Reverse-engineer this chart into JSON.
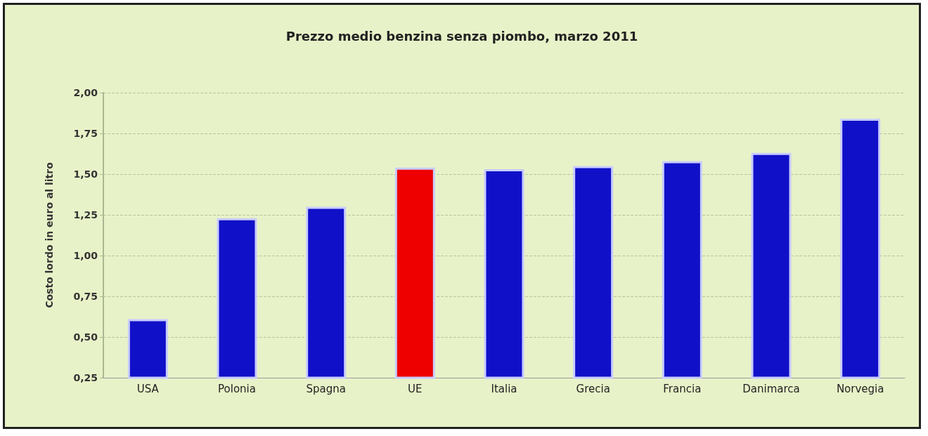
{
  "chart_data": {
    "type": "bar",
    "title": "Prezzo medio benzina senza piombo, marzo 2011",
    "ylabel": "Costo lordo in euro al litro",
    "categories": [
      "USA",
      "Polonia",
      "Spagna",
      "UE",
      "Italia",
      "Grecia",
      "Francia",
      "Danimarca",
      "Norvegia"
    ],
    "values": [
      0.61,
      1.23,
      1.3,
      1.54,
      1.53,
      1.55,
      1.58,
      1.63,
      1.84
    ],
    "colors": [
      "#1010c8",
      "#1010c8",
      "#1010c8",
      "#ee0000",
      "#1010c8",
      "#1010c8",
      "#1010c8",
      "#1010c8",
      "#1010c8"
    ],
    "ylim": [
      0.25,
      2.0
    ],
    "yticks": [
      {
        "value": 0.25,
        "label": "0,25"
      },
      {
        "value": 0.5,
        "label": "0,50"
      },
      {
        "value": 0.75,
        "label": "0,75"
      },
      {
        "value": 1.0,
        "label": "1,00"
      },
      {
        "value": 1.25,
        "label": "1,25"
      },
      {
        "value": 1.5,
        "label": "1,50"
      },
      {
        "value": 1.75,
        "label": "1,75"
      },
      {
        "value": 2.0,
        "label": "2,00"
      }
    ],
    "grid": "y"
  }
}
